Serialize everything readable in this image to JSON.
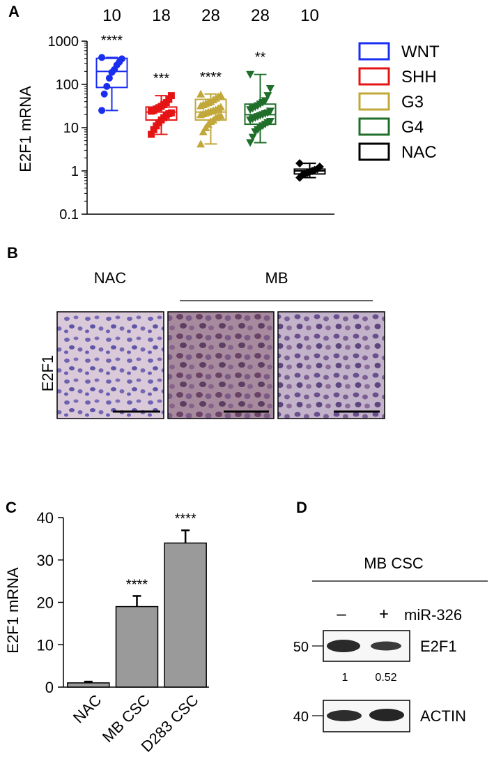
{
  "panels": {
    "A": "A",
    "B": "B",
    "C": "C",
    "D": "D"
  },
  "chart_data": [
    {
      "panel": "A",
      "type": "boxplot",
      "ylabel": "E2F1 mRNA",
      "yscale": "log",
      "ylim": [
        0.1,
        1000
      ],
      "yticks": [
        "0.1",
        "1",
        "10",
        "100",
        "1000"
      ],
      "groups": [
        {
          "name": "WNT",
          "color": "#1a2ef0",
          "n": "10",
          "sig": "****",
          "min": 25,
          "q1": 85,
          "median": 200,
          "q3": 400,
          "max": 420,
          "points": [
            25,
            60,
            90,
            140,
            190,
            220,
            280,
            330,
            390,
            420
          ]
        },
        {
          "name": "SHH",
          "color": "#e51414",
          "n": "18",
          "sig": "***",
          "min": 7,
          "q1": 15,
          "median": 23,
          "q3": 30,
          "max": 55,
          "points": [
            7,
            9,
            11,
            13,
            15,
            17,
            19,
            21,
            22,
            24,
            25,
            27,
            29,
            31,
            34,
            38,
            45,
            55
          ]
        },
        {
          "name": "G3",
          "color": "#c2a83a",
          "n": "28",
          "sig": "****",
          "min": 4.2,
          "q1": 15,
          "median": 23,
          "q3": 45,
          "max": 60,
          "points": [
            4.2,
            8,
            10,
            12,
            14,
            15,
            17,
            18,
            19,
            20,
            21,
            22,
            23,
            24,
            25,
            26,
            28,
            30,
            32,
            34,
            36,
            38,
            40,
            44,
            48,
            52,
            56,
            60
          ]
        },
        {
          "name": "G4",
          "color": "#1f6e2a",
          "n": "28",
          "sig": "**",
          "min": 4.5,
          "q1": 12,
          "median": 20,
          "q3": 35,
          "max": 170,
          "points": [
            4.5,
            6,
            8,
            9,
            10,
            11,
            12,
            13,
            14,
            15,
            16,
            17,
            18,
            19,
            20,
            21,
            22,
            24,
            26,
            28,
            30,
            32,
            35,
            38,
            42,
            55,
            80,
            170
          ]
        },
        {
          "name": "NAC",
          "color": "#000000",
          "n": "10",
          "sig": "",
          "min": 0.7,
          "q1": 0.85,
          "median": 1.0,
          "q3": 1.1,
          "max": 1.5,
          "points": [
            0.7,
            0.8,
            0.85,
            0.9,
            0.95,
            1.0,
            1.05,
            1.1,
            1.25,
            1.5
          ]
        }
      ],
      "legend": [
        "WNT",
        "SHH",
        "G3",
        "G4",
        "NAC"
      ],
      "legend_position": "right"
    },
    {
      "panel": "C",
      "type": "bar",
      "ylabel": "E2F1 mRNA",
      "ylim": [
        0,
        40
      ],
      "yticks": [
        "0",
        "10",
        "20",
        "30",
        "40"
      ],
      "categories": [
        "NAC",
        "MB CSC",
        "D283 CSC"
      ],
      "values": [
        1,
        19,
        34
      ],
      "errors": [
        0.3,
        2.5,
        3
      ],
      "sig": [
        "",
        "****",
        "****"
      ],
      "bar_color": "#9a9a9a"
    }
  ],
  "panel_b": {
    "column_labels": {
      "nac": "NAC",
      "mb": "MB"
    },
    "row_label": "E2F1",
    "tiles": [
      {
        "tissue": "NAC",
        "stain": "#9c8fc0"
      },
      {
        "tissue": "MB",
        "stain": "#8e6a8e"
      },
      {
        "tissue": "MB",
        "stain": "#8f7aa6"
      }
    ]
  },
  "panel_d": {
    "title": "MB CSC",
    "lanes": [
      "–",
      "+"
    ],
    "treatment": "miR-326",
    "blots": [
      {
        "label": "E2F1",
        "marker": "50",
        "quant": [
          "1",
          "0.52"
        ]
      },
      {
        "label": "ACTIN",
        "marker": "40",
        "quant": []
      }
    ]
  }
}
